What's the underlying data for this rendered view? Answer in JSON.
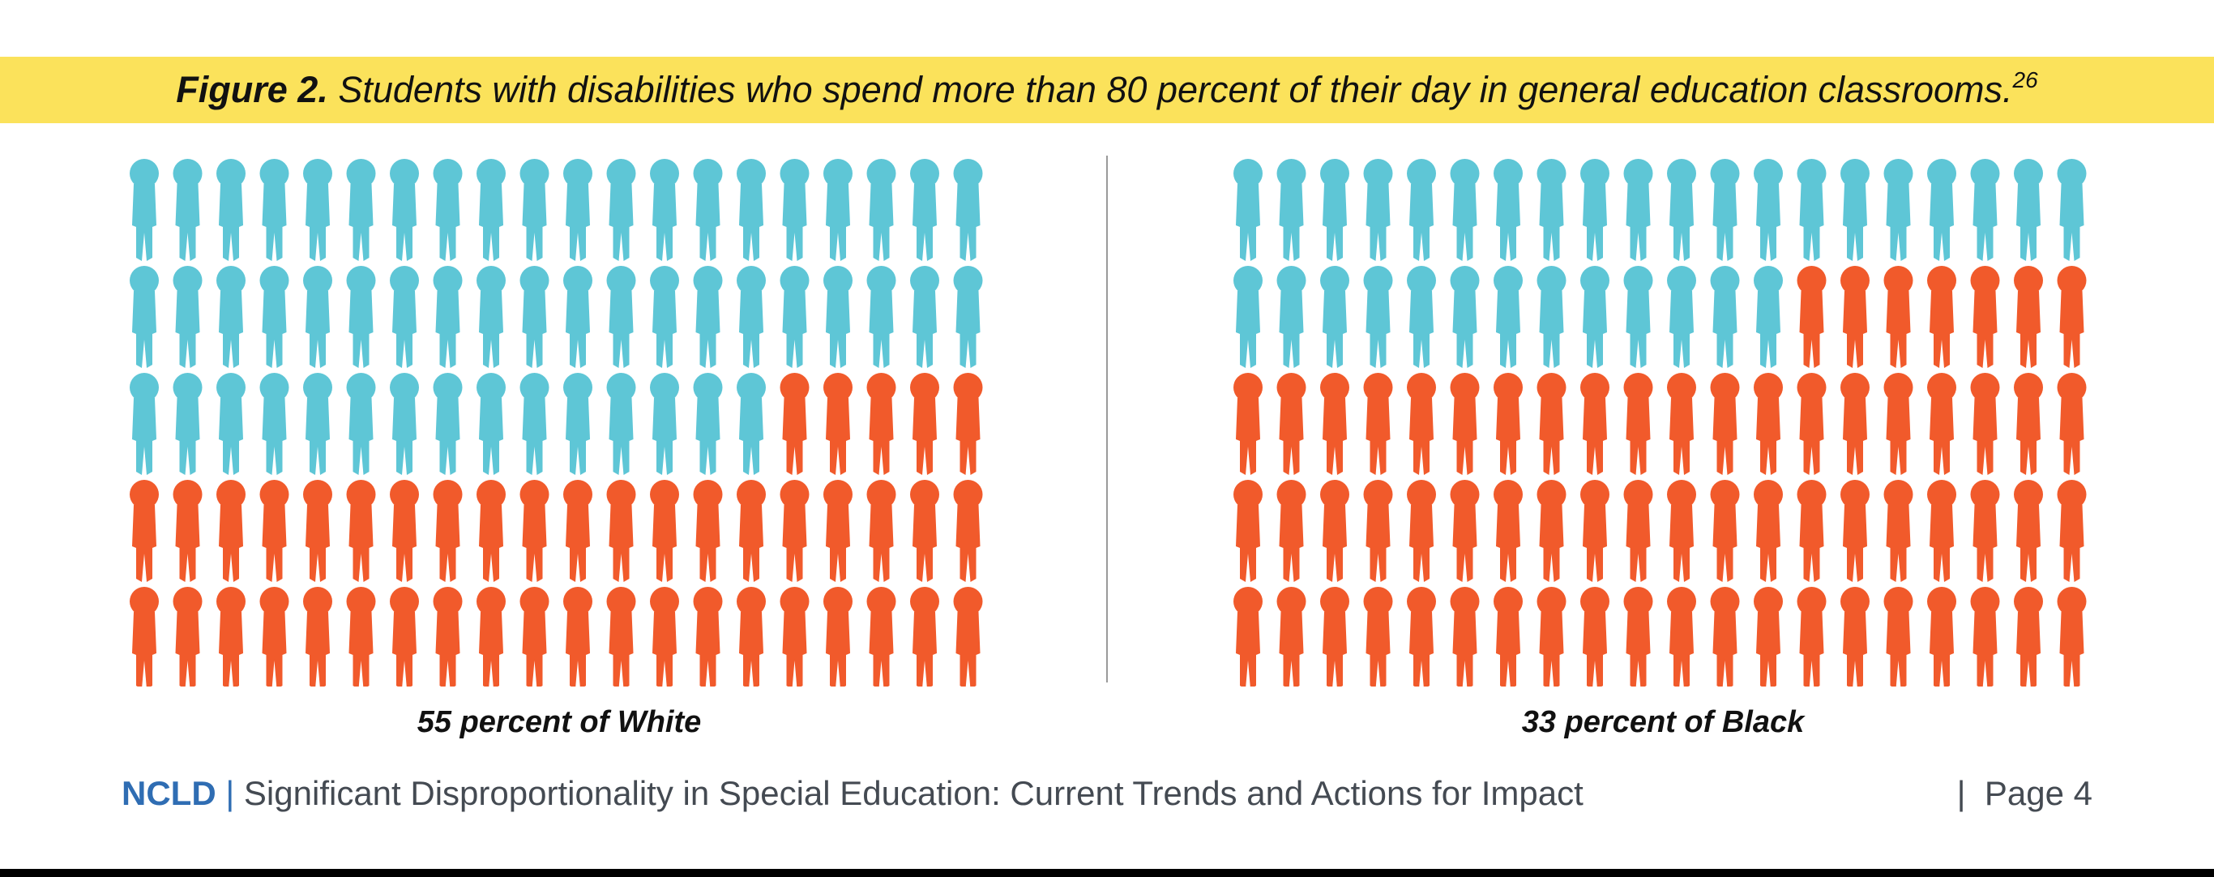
{
  "figure": {
    "label": "Figure 2.",
    "caption": "Students with disabilities who spend more than 80 percent of their day in general education classrooms.",
    "footnote": "26"
  },
  "colors": {
    "banner": "#fbe25b",
    "in_general_ed": "#5ec6d6",
    "not_in_general_ed": "#f15a2b",
    "brand": "#2f6db3"
  },
  "chart_data": [
    {
      "type": "pictograph",
      "total_icons": 100,
      "rows": 5,
      "columns": 20,
      "highlighted_icons": 55,
      "value_percent": 55,
      "label": "55 percent of White",
      "icon": "person-icon"
    },
    {
      "type": "pictograph",
      "total_icons": 100,
      "rows": 5,
      "columns": 20,
      "highlighted_icons": 33,
      "value_percent": 33,
      "label": "33 percent of Black",
      "icon": "person-icon"
    }
  ],
  "footer": {
    "brand": "NCLD",
    "separator": "|",
    "title": "Significant Disproportionality in Special Education: Current Trends and Actions for Impact",
    "page_separator": "|",
    "page": "Page 4"
  }
}
